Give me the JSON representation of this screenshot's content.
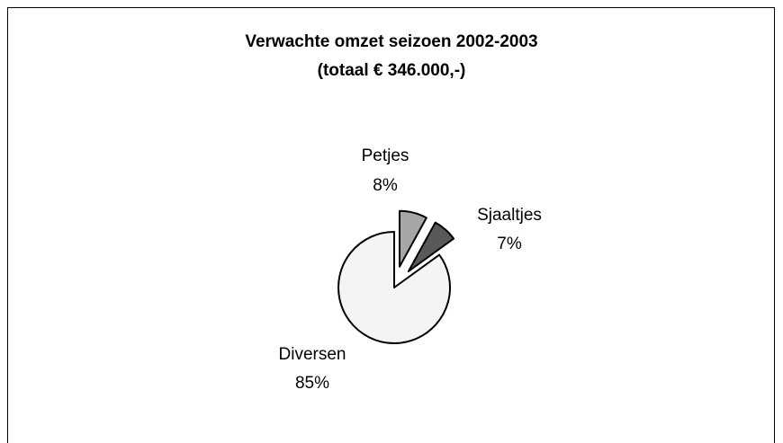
{
  "chart_data": {
    "type": "pie",
    "title": "Verwachte omzet seizoen 2002-2003",
    "subtitle": "(totaal € 346.000,-)",
    "categories": [
      "Petjes",
      "Sjaaltjes",
      "Diversen"
    ],
    "values": [
      8,
      7,
      85
    ],
    "value_labels": [
      "8%",
      "7%",
      "85%"
    ],
    "colors": [
      "#a6a6a6",
      "#595959",
      "#f4f4f4"
    ],
    "exploded": [
      true,
      true,
      false
    ]
  }
}
